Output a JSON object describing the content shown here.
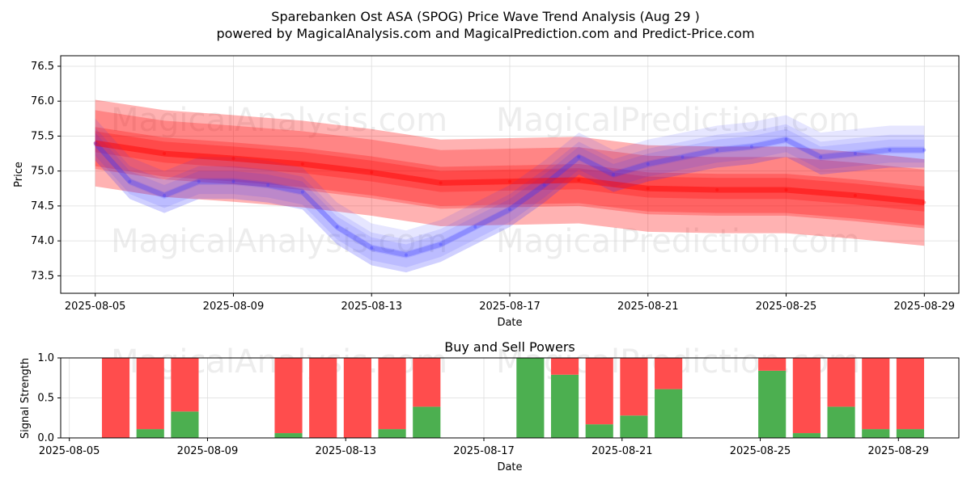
{
  "title_line1": "Sparebanken Ost ASA (SPOG) Price Wave Trend Analysis (Aug 29 )",
  "title_line2": "powered by MagicalAnalysis.com and MagicalPrediction.com and Predict-Price.com",
  "watermarks": [
    "MagicalAnalysis.com",
    "MagicalPrediction.com"
  ],
  "colors": {
    "red": "#ff0000",
    "blue": "#3333ff",
    "buy": "#4caf50",
    "sell": "#ff4d4d",
    "grid": "#dddddd"
  },
  "chart_data": [
    {
      "type": "line",
      "title": "",
      "xlabel": "Date",
      "ylabel": "Price",
      "ylim": [
        73.25,
        76.65
      ],
      "xlim": [
        "2025-08-04",
        "2025-08-30"
      ],
      "x_ticks": [
        "2025-08-05",
        "2025-08-09",
        "2025-08-13",
        "2025-08-17",
        "2025-08-21",
        "2025-08-25",
        "2025-08-29"
      ],
      "y_ticks": [
        73.5,
        74.0,
        74.5,
        75.0,
        75.5,
        76.0,
        76.5
      ],
      "series": [
        {
          "name": "Trend (red)",
          "x": [
            "2025-08-05",
            "2025-08-07",
            "2025-08-09",
            "2025-08-11",
            "2025-08-13",
            "2025-08-15",
            "2025-08-17",
            "2025-08-19",
            "2025-08-21",
            "2025-08-23",
            "2025-08-25",
            "2025-08-27",
            "2025-08-29"
          ],
          "values": [
            75.4,
            75.25,
            75.18,
            75.1,
            74.98,
            74.83,
            74.85,
            74.87,
            74.75,
            74.73,
            74.73,
            74.65,
            74.55
          ]
        },
        {
          "name": "Price wave (blue)",
          "x": [
            "2025-08-05",
            "2025-08-06",
            "2025-08-07",
            "2025-08-08",
            "2025-08-09",
            "2025-08-10",
            "2025-08-11",
            "2025-08-12",
            "2025-08-13",
            "2025-08-14",
            "2025-08-15",
            "2025-08-16",
            "2025-08-17",
            "2025-08-18",
            "2025-08-19",
            "2025-08-20",
            "2025-08-21",
            "2025-08-22",
            "2025-08-23",
            "2025-08-24",
            "2025-08-25",
            "2025-08-26",
            "2025-08-27",
            "2025-08-28",
            "2025-08-29"
          ],
          "values": [
            75.4,
            74.85,
            74.65,
            74.85,
            74.85,
            74.8,
            74.7,
            74.2,
            73.9,
            73.8,
            73.95,
            74.2,
            74.45,
            74.8,
            75.2,
            74.95,
            75.1,
            75.2,
            75.3,
            75.35,
            75.45,
            75.2,
            75.25,
            75.3,
            75.3
          ]
        }
      ]
    },
    {
      "type": "bar",
      "title": "Buy and Sell Powers",
      "xlabel": "Date",
      "ylabel": "Signal Strength",
      "ylim": [
        0,
        1.0
      ],
      "xlim": [
        "2025-08-04",
        "2025-08-30"
      ],
      "x_ticks": [
        "2025-08-05",
        "2025-08-09",
        "2025-08-13",
        "2025-08-17",
        "2025-08-21",
        "2025-08-25",
        "2025-08-29"
      ],
      "y_ticks": [
        0.0,
        0.5,
        1.0
      ],
      "categories": [
        "2025-08-06",
        "2025-08-07",
        "2025-08-08",
        "2025-08-11",
        "2025-08-12",
        "2025-08-13",
        "2025-08-14",
        "2025-08-15",
        "2025-08-18",
        "2025-08-19",
        "2025-08-20",
        "2025-08-21",
        "2025-08-22",
        "2025-08-25",
        "2025-08-26",
        "2025-08-27",
        "2025-08-28",
        "2025-08-29"
      ],
      "series": [
        {
          "name": "Buy",
          "values": [
            0.0,
            0.11,
            0.33,
            0.06,
            0.0,
            0.0,
            0.11,
            0.39,
            1.0,
            0.79,
            0.17,
            0.28,
            0.61,
            0.84,
            0.06,
            0.39,
            0.11,
            0.11
          ]
        },
        {
          "name": "Sell",
          "values": [
            1.0,
            0.89,
            0.67,
            0.94,
            1.0,
            1.0,
            0.89,
            0.61,
            0.0,
            0.21,
            0.83,
            0.72,
            0.39,
            0.16,
            0.94,
            0.61,
            0.89,
            0.89
          ]
        }
      ]
    }
  ]
}
